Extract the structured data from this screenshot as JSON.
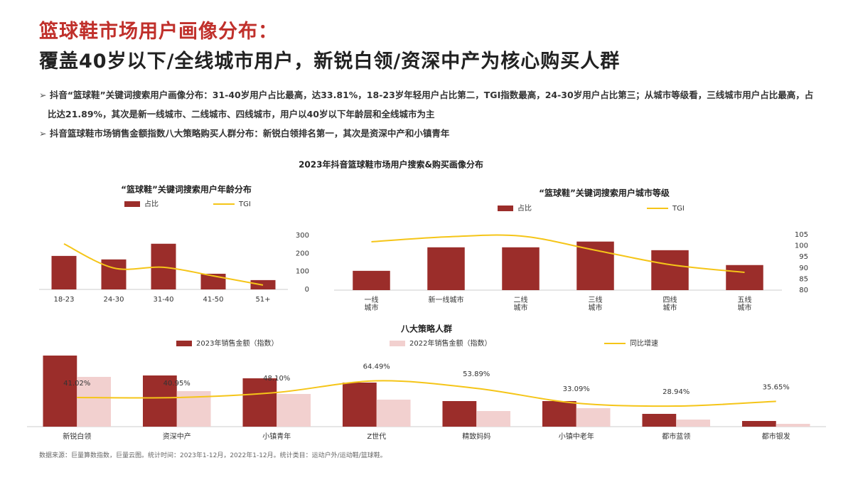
{
  "header": {
    "title": "篮球鞋市场用户画像分布：",
    "subtitle": "覆盖40岁以下/全线城市用户，新锐白领/资深中产为核心购买人群"
  },
  "bullets": [
    "抖音“篮球鞋”关键词搜索用户画像分布：31-40岁用户占比最高，达33.81%，18-23岁年轻用户占比第二，TGI指数最高，24-30岁用户占比第三；从城市等级看，三线城市用户占比最高，占比达21.89%，其次是新一线城市、二线城市、四线城市，用户以40岁以下年龄层和全线城市为主",
    "抖音篮球鞋市场销售金额指数八大策略购买人群分布：新锐白领排名第一，其次是资深中产和小镇青年"
  ],
  "section_title": "2023年抖音篮球鞋市场用户搜索&购买画像分布",
  "source": "数据来源：巨量算数指数，巨量云图。统计时间：2023年1-12月，2022年1-12月。统计类目：运动户外/运动鞋/篮球鞋。",
  "chart_data": [
    {
      "type": "combo",
      "title": "“篮球鞋”关键词搜索用户年龄分布",
      "categories": [
        "18-23",
        "24-30",
        "31-40",
        "41-50",
        "51+"
      ],
      "ylim": [
        0,
        40
      ],
      "y2lim": [
        0,
        300
      ],
      "y2ticks": [
        0,
        100,
        200,
        300
      ],
      "series": [
        {
          "name": "占比",
          "type": "bar",
          "color": "#9b2d2a",
          "values": [
            24.8,
            22.2,
            33.81,
            11.6,
            6.9
          ]
        },
        {
          "name": "TGI",
          "type": "line",
          "axis": "y2",
          "color": "#f5c518",
          "values": [
            253,
            119,
            123,
            75,
            24
          ]
        }
      ]
    },
    {
      "type": "combo",
      "title": "“篮球鞋”关键词搜索用户城市等级",
      "categories": [
        "一线城市",
        "新一线城市",
        "二线城市",
        "三线城市",
        "四线城市",
        "五线城市"
      ],
      "ylim": [
        0,
        25
      ],
      "y2lim": [
        80,
        105
      ],
      "y2ticks": [
        80,
        85,
        90,
        95,
        100,
        105
      ],
      "series": [
        {
          "name": "占比",
          "type": "bar",
          "color": "#9b2d2a",
          "values": [
            8.7,
            19.3,
            19.3,
            21.89,
            18.0,
            11.3
          ]
        },
        {
          "name": "TGI",
          "type": "line",
          "axis": "y2",
          "color": "#f5c518",
          "values": [
            101.8,
            104,
            104.4,
            98,
            91.5,
            88
          ]
        }
      ]
    },
    {
      "type": "combo",
      "title": "八大策略人群",
      "categories": [
        "新锐白领",
        "资深中产",
        "小镇青年",
        "Z世代",
        "精致妈妈",
        "小镇中老年",
        "都市蓝领",
        "都市银发"
      ],
      "ylim": [
        0,
        60
      ],
      "y2lim": [
        0,
        120
      ],
      "series": [
        {
          "name": "2023年销售金额（指数）",
          "type": "bar",
          "color": "#9b2d2a",
          "values": [
            50,
            36,
            34,
            31,
            18,
            18,
            9,
            4
          ]
        },
        {
          "name": "2022年销售金额（指数）",
          "type": "bar",
          "color": "#f2d0cf",
          "values": [
            35,
            25,
            23,
            19,
            11,
            13,
            5,
            2
          ]
        },
        {
          "name": "同比增速",
          "type": "line",
          "axis": "y2",
          "color": "#f5c518",
          "values": [
            41.02,
            40.95,
            48.1,
            64.49,
            53.89,
            33.09,
            28.94,
            35.65
          ],
          "value_labels": [
            "41.02%",
            "40.95%",
            "48.10%",
            "64.49%",
            "53.89%",
            "33.09%",
            "28.94%",
            "35.65%"
          ]
        }
      ]
    }
  ]
}
